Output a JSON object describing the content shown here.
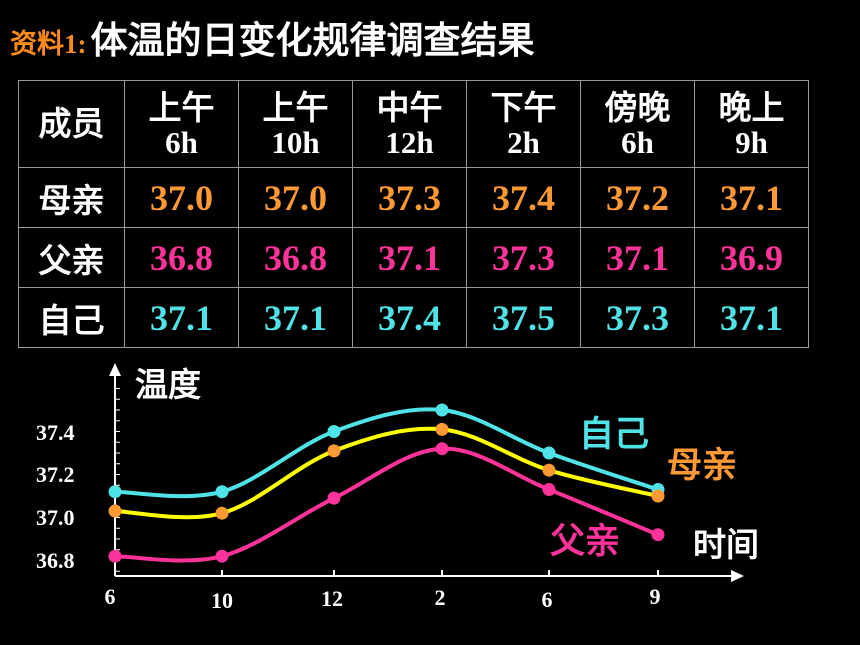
{
  "title": {
    "prefix": "资料1:",
    "text": "体温的日变化规律调查结果"
  },
  "table": {
    "header_name": "成员",
    "columns": [
      {
        "period": "上午",
        "hour": "6h"
      },
      {
        "period": "上午",
        "hour": "10h"
      },
      {
        "period": "中午",
        "hour": "12h"
      },
      {
        "period": "下午",
        "hour": "2h"
      },
      {
        "period": "傍晚",
        "hour": "6h"
      },
      {
        "period": "晚上",
        "hour": "9h"
      }
    ],
    "rows": [
      {
        "name": "母亲",
        "values": [
          "37.0",
          "37.0",
          "37.3",
          "37.4",
          "37.2",
          "37.1"
        ]
      },
      {
        "name": "父亲",
        "values": [
          "36.8",
          "36.8",
          "37.1",
          "37.3",
          "37.1",
          "36.9"
        ]
      },
      {
        "name": "自己",
        "values": [
          "37.1",
          "37.1",
          "37.4",
          "37.5",
          "37.3",
          "37.1"
        ]
      }
    ]
  },
  "colors": {
    "mother": "#ff9933",
    "father": "#ff3399",
    "self": "#4fe3e8",
    "mother_line": "#ffff00"
  },
  "chart_data": {
    "type": "line",
    "ylabel": "温度",
    "xlabel": "时间",
    "x_ticks": [
      "6",
      "10",
      "12",
      "2",
      "6",
      "9"
    ],
    "y_ticks": [
      "37.4",
      "37.2",
      "37.0",
      "36.8"
    ],
    "series": [
      {
        "name": "自己",
        "color": "#4fe3e8",
        "line_color": "#4fe3e8",
        "values": [
          37.12,
          37.12,
          37.4,
          37.5,
          37.3,
          37.13
        ]
      },
      {
        "name": "母亲",
        "color": "#ff9933",
        "line_color": "#ffff00",
        "values": [
          37.03,
          37.02,
          37.31,
          37.41,
          37.22,
          37.1
        ]
      },
      {
        "name": "父亲",
        "color": "#ff3399",
        "line_color": "#ff3399",
        "values": [
          36.82,
          36.82,
          37.09,
          37.32,
          37.13,
          36.92
        ]
      }
    ]
  }
}
